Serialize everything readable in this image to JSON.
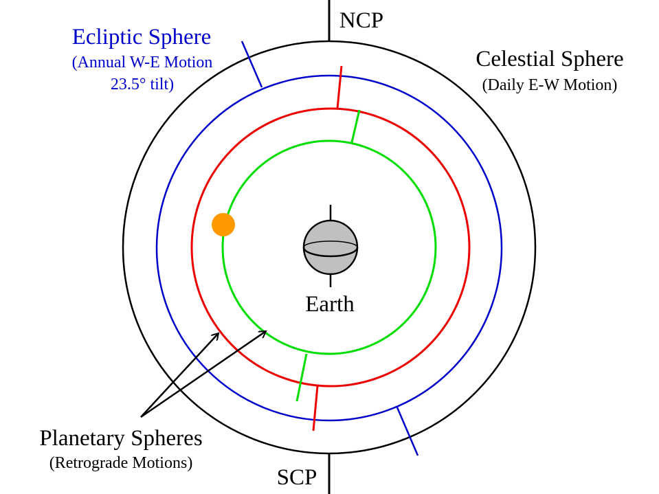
{
  "labels": {
    "ncp": "NCP",
    "scp": "SCP",
    "ecliptic_title": "Ecliptic Sphere",
    "ecliptic_sub1": "(Annual W-E Motion",
    "ecliptic_sub2": "23.5° tilt)",
    "celestial_title": "Celestial Sphere",
    "celestial_sub": "(Daily E-W Motion)",
    "earth": "Earth",
    "planetary_title": "Planetary Spheres",
    "planetary_sub": "(Retrograde Motions)"
  },
  "colors": {
    "celestial": "#000000",
    "ecliptic": "#0000cc",
    "outer_planetary": "#ee0000",
    "inner_planetary": "#00dd00",
    "sun": "#ff9900",
    "earth": "#c0c0c0"
  }
}
